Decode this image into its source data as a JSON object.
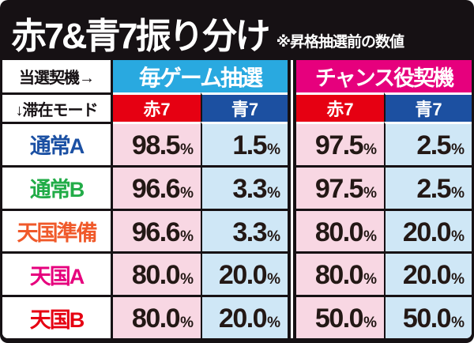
{
  "title": {
    "main": "赤7&青7振り分け",
    "note": "※昇格抽選前の数値"
  },
  "table": {
    "corner_top": "当選契機→",
    "corner_bottom": "↓滞在モード",
    "groups": [
      {
        "label": "毎ゲーム抽選",
        "color": "#29a9e0"
      },
      {
        "label": "チャンス役契機",
        "color": "#e6007d"
      }
    ],
    "sub_headers": [
      {
        "label": "赤7",
        "color": "#e60012"
      },
      {
        "label": "青7",
        "color": "#1c50a1"
      },
      {
        "label": "赤7",
        "color": "#e60012"
      },
      {
        "label": "青7",
        "color": "#1c50a1"
      }
    ],
    "percent": "%",
    "cell_colors": {
      "red7_column_bg": "#f8d7e3",
      "blue7_column_bg": "#cfe7f6"
    },
    "rows": [
      {
        "mode": "通常A",
        "mode_style": "color:#1b50a3",
        "values": [
          "98.5",
          "1.5",
          "97.5",
          "2.5"
        ]
      },
      {
        "mode": "通常B",
        "mode_style": "color:#22ac48",
        "values": [
          "96.6",
          "3.3",
          "97.5",
          "2.5"
        ]
      },
      {
        "mode": "天国準備",
        "mode_style": "color:#f0592a",
        "values": [
          "96.6",
          "3.3",
          "80.0",
          "20.0"
        ]
      },
      {
        "mode": "天国A",
        "mode_style": "color:#e6007d",
        "values": [
          "80.0",
          "20.0",
          "80.0",
          "20.0"
        ]
      },
      {
        "mode": "天国B",
        "mode_style": "color:#e60012",
        "values": [
          "80.0",
          "20.0",
          "50.0",
          "50.0"
        ]
      }
    ]
  }
}
